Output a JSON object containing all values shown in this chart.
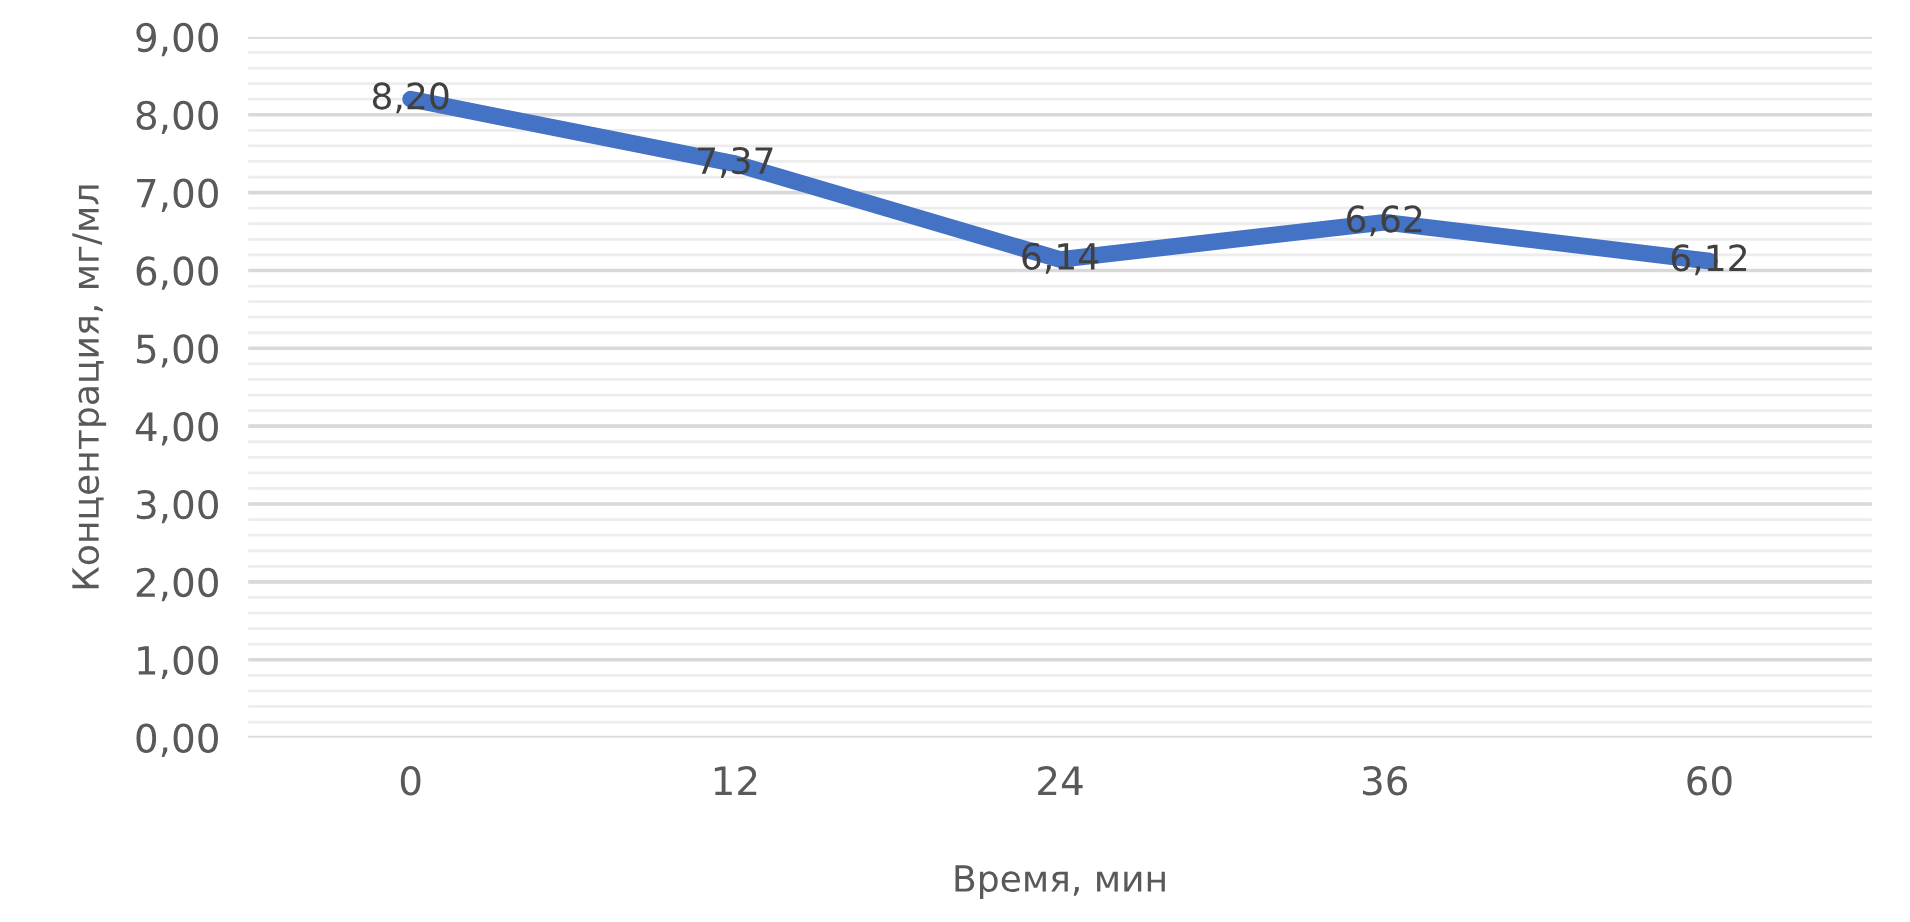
{
  "chart_data": {
    "type": "line",
    "xlabel": "Время, мин",
    "ylabel": "Концентрация, мг/мл",
    "categories": [
      "0",
      "12",
      "24",
      "36",
      "60"
    ],
    "series": [
      {
        "color": "#4472c4",
        "values": [
          8.2,
          7.37,
          6.14,
          6.62,
          6.12
        ],
        "value_labels": [
          "8,20",
          "7,37",
          "6,14",
          "6,62",
          "6,12"
        ]
      }
    ],
    "ylim": [
      0,
      9
    ],
    "yticks": [
      {
        "value": 0,
        "label": "0,00"
      },
      {
        "value": 1,
        "label": "1,00"
      },
      {
        "value": 2,
        "label": "2,00"
      },
      {
        "value": 3,
        "label": "3,00"
      },
      {
        "value": 4,
        "label": "4,00"
      },
      {
        "value": 5,
        "label": "5,00"
      },
      {
        "value": 6,
        "label": "6,00"
      },
      {
        "value": 7,
        "label": "7,00"
      },
      {
        "value": 8,
        "label": "8,00"
      },
      {
        "value": 9,
        "label": "9,00"
      }
    ],
    "grid": "y",
    "marker": "none",
    "line_style": "solid"
  }
}
